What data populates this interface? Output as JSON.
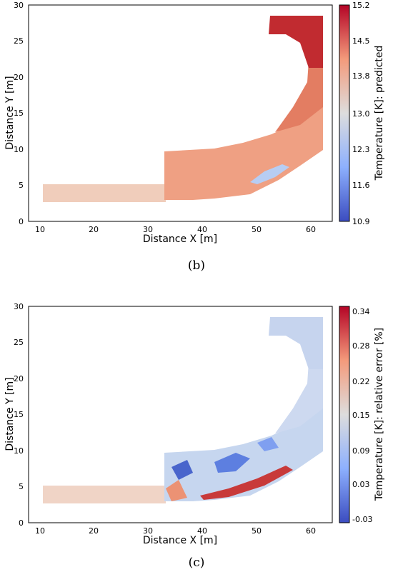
{
  "panels": [
    {
      "caption": "(b)",
      "chart_data": {
        "type": "heatmap",
        "xlabel": "Distance X [m]",
        "ylabel": "Distance Y [m]",
        "xticks": [
          "10",
          "20",
          "30",
          "40",
          "50",
          "60"
        ],
        "yticks": [
          "0",
          "5",
          "10",
          "15",
          "20",
          "25",
          "30"
        ],
        "xlim": [
          9,
          64
        ],
        "ylim": [
          0,
          30
        ],
        "colorbar": {
          "label": "Temperature [K]: predicted",
          "ticks": [
            "15.2",
            "14.5",
            "13.8",
            "13.0",
            "12.3",
            "11.6",
            "10.9"
          ],
          "range": [
            10.9,
            15.2
          ],
          "colormap": "coolwarm"
        },
        "regions": [
          {
            "region": "lower corridor",
            "value": 13.3
          },
          {
            "region": "middle section",
            "value": 13.75
          },
          {
            "region": "lower bend",
            "value": 12.0
          },
          {
            "region": "upper arm",
            "value": 14.3
          },
          {
            "region": "top chamber",
            "value": 15.1
          }
        ],
        "grid": false
      }
    },
    {
      "caption": "(c)",
      "chart_data": {
        "type": "heatmap",
        "xlabel": "Distance X [m]",
        "ylabel": "Distance Y [m]",
        "xticks": [
          "10",
          "20",
          "30",
          "40",
          "50",
          "60"
        ],
        "yticks": [
          "0",
          "5",
          "10",
          "15",
          "20",
          "25",
          "30"
        ],
        "xlim": [
          9,
          64
        ],
        "ylim": [
          0,
          30
        ],
        "colorbar": {
          "label": "Temperature [K]: relative error [%]",
          "ticks": [
            "0.34",
            "0.28",
            "0.22",
            "0.15",
            "0.09",
            "0.03",
            "-0.03"
          ],
          "range": [
            -0.03,
            0.34
          ],
          "colormap": "coolwarm"
        },
        "regions": [
          {
            "region": "lower corridor",
            "value": 0.17
          },
          {
            "region": "middle section",
            "value": 0.1
          },
          {
            "region": "blue pockets",
            "value": -0.02
          },
          {
            "region": "lower red band",
            "value": 0.33
          },
          {
            "region": "upper arm",
            "value": 0.12
          },
          {
            "region": "top chamber",
            "value": 0.13
          }
        ],
        "grid": false
      }
    }
  ]
}
